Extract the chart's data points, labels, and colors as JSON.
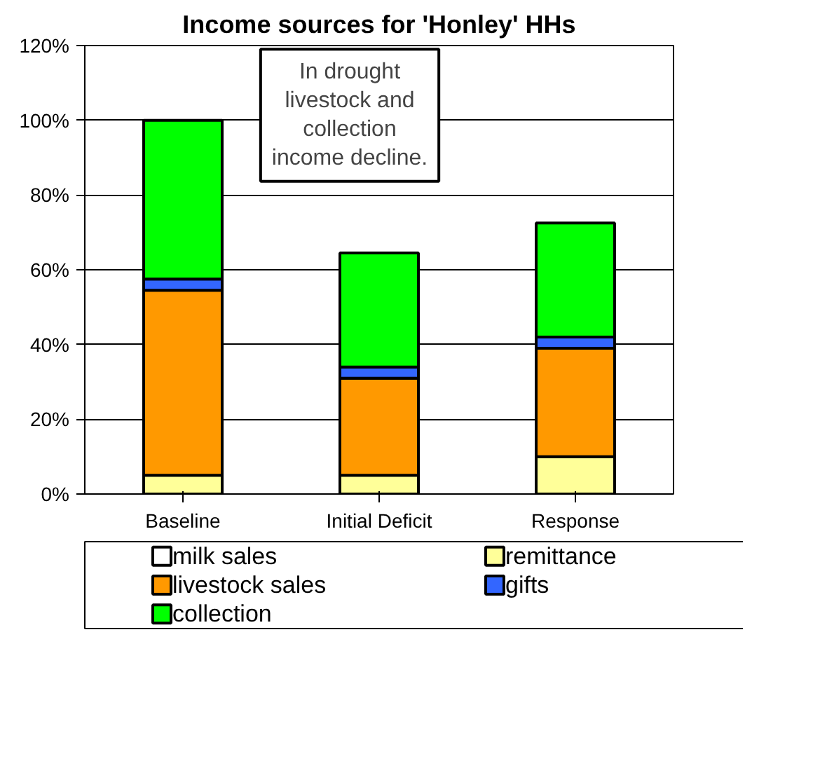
{
  "chart_data": {
    "type": "bar",
    "title": "Income sources for 'Honley' HHs",
    "stacked": true,
    "categories": [
      "Baseline",
      "Initial Deficit",
      "Response"
    ],
    "series": [
      {
        "name": "milk sales",
        "color": "#ffffff",
        "values": [
          0,
          0,
          0
        ]
      },
      {
        "name": "remittance",
        "color": "#ffff99",
        "values": [
          5,
          5,
          10
        ]
      },
      {
        "name": "livestock sales",
        "color": "#ff9900",
        "values": [
          49.5,
          26,
          29
        ]
      },
      {
        "name": "gifts",
        "color": "#3366ff",
        "values": [
          3,
          3,
          3
        ]
      },
      {
        "name": "collection",
        "color": "#00ff00",
        "values": [
          42.5,
          30.5,
          30.5
        ]
      }
    ],
    "ylim": [
      0,
      120
    ],
    "yticks": [
      {
        "value": 0,
        "label": "0%"
      },
      {
        "value": 20,
        "label": "20%"
      },
      {
        "value": 40,
        "label": "40%"
      },
      {
        "value": 60,
        "label": "60%"
      },
      {
        "value": 80,
        "label": "80%"
      },
      {
        "value": 100,
        "label": "100%"
      },
      {
        "value": 120,
        "label": "120%"
      }
    ],
    "grid": "y",
    "legend": "bottom",
    "annotations": [
      "In drought\nlivestock and\ncollection\nincome decline."
    ]
  }
}
